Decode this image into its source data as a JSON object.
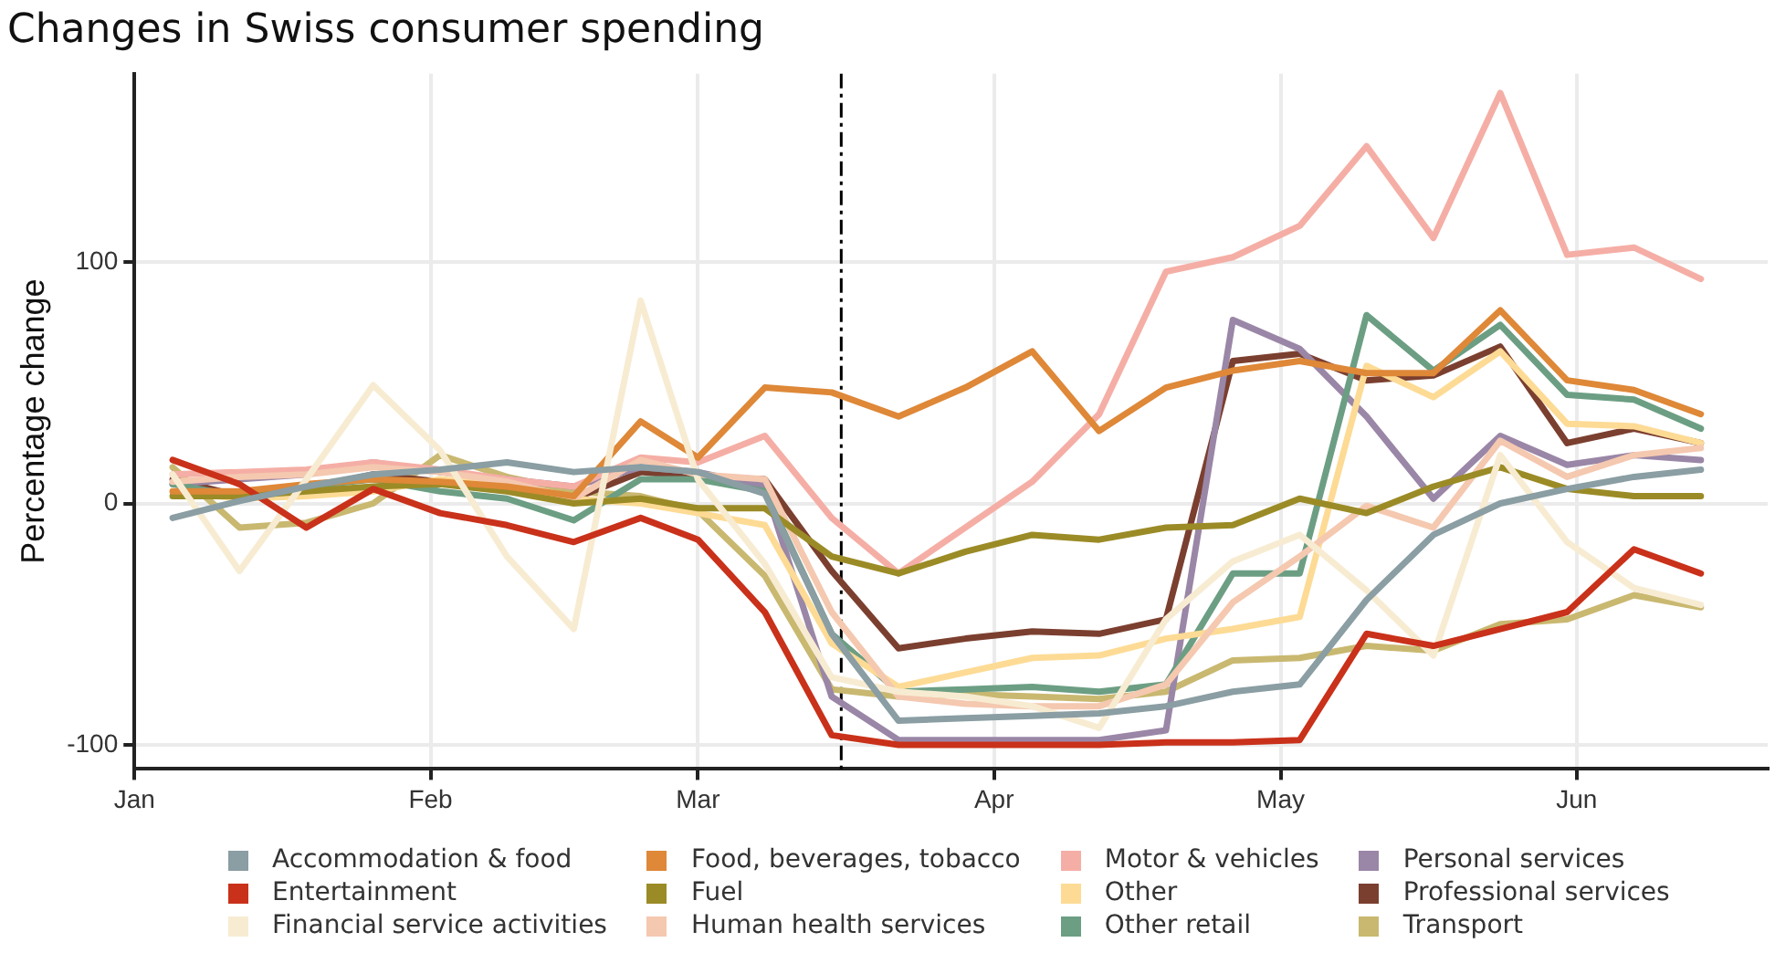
{
  "chart_data": {
    "type": "line",
    "title": "Changes in Swiss consumer spending",
    "ylabel": "Percentage change",
    "x": [
      "--01-05",
      "--01-12",
      "--01-19",
      "--01-26",
      "--02-02",
      "--02-09",
      "--02-16",
      "--02-23",
      "--03-01",
      "--03-08",
      "--03-15",
      "--03-22",
      "--03-29",
      "--04-05",
      "--04-12",
      "--04-19",
      "--04-26",
      "--05-03",
      "--05-10",
      "--05-17",
      "--05-24",
      "--05-31",
      "--06-07",
      "--06-14"
    ],
    "xlim": [
      "--01-01",
      "--06-21"
    ],
    "xticks": [
      {
        "value": "--01-01",
        "label": "Jan"
      },
      {
        "value": "--02-01",
        "label": "Feb"
      },
      {
        "value": "--03-01",
        "label": "Mar"
      },
      {
        "value": "--04-01",
        "label": "Apr"
      },
      {
        "value": "--05-01",
        "label": "May"
      },
      {
        "value": "--06-01",
        "label": "Jun"
      }
    ],
    "ylim": [
      -110,
      178
    ],
    "yticks": [
      -100,
      0,
      100
    ],
    "grid": true,
    "legend": "bottom",
    "marker": "none",
    "line_style": "solid",
    "ref_lines": [
      {
        "axis": "x",
        "value": "--03-16",
        "color": "#000000",
        "line_style": "dashed"
      }
    ],
    "series": [
      {
        "name": "Accommodation & food",
        "color": "#8a9ea3",
        "values": [
          -6,
          1,
          7,
          12,
          14,
          17,
          13,
          15,
          13,
          4,
          -54,
          -90,
          -89,
          -88,
          -87,
          -84,
          -78,
          -75,
          -40,
          -13,
          0,
          6,
          11,
          14
        ]
      },
      {
        "name": "Entertainment",
        "color": "#c9311a",
        "values": [
          18,
          8,
          -10,
          6,
          -4,
          -9,
          -16,
          -6,
          -15,
          -45,
          -96,
          -100,
          -100,
          -100,
          -100,
          -99,
          -99,
          -98,
          -54,
          -59,
          -52,
          -45,
          -19,
          -29
        ]
      },
      {
        "name": "Financial service activities",
        "color": "#f7ecd2",
        "values": [
          12,
          -28,
          10,
          49,
          22,
          -22,
          -52,
          84,
          10,
          -25,
          -72,
          -78,
          -80,
          -84,
          -93,
          -48,
          -24,
          -13,
          -36,
          -63,
          20,
          -16,
          -35,
          -42
        ]
      },
      {
        "name": "Food, beverages, tobacco",
        "color": "#de8838",
        "values": [
          5,
          5,
          8,
          10,
          9,
          7,
          3,
          34,
          19,
          48,
          46,
          36,
          48,
          63,
          30,
          48,
          55,
          59,
          54,
          54,
          80,
          51,
          47,
          37
        ]
      },
      {
        "name": "Fuel",
        "color": "#9b8b26",
        "values": [
          3,
          3,
          5,
          7,
          8,
          5,
          0,
          2,
          -2,
          -2,
          -22,
          -29,
          -20,
          -13,
          -15,
          -10,
          -9,
          2,
          -4,
          7,
          15,
          6,
          3,
          3
        ]
      },
      {
        "name": "Human health services",
        "color": "#f5c8b0",
        "values": [
          9,
          11,
          12,
          15,
          13,
          9,
          2,
          18,
          12,
          10,
          -45,
          -80,
          -83,
          -84,
          -84,
          -75,
          -41,
          -22,
          -1,
          -10,
          26,
          11,
          20,
          23
        ]
      },
      {
        "name": "Motor & vehicles",
        "color": "#f5aea5",
        "values": [
          12,
          13,
          14,
          17,
          14,
          10,
          7,
          19,
          17,
          28,
          -6,
          -29,
          -10,
          9,
          37,
          96,
          102,
          115,
          148,
          110,
          170,
          103,
          106,
          93
        ]
      },
      {
        "name": "Other",
        "color": "#fddb95",
        "values": [
          5,
          2,
          3,
          5,
          10,
          7,
          2,
          0,
          -4,
          -9,
          -58,
          -76,
          -70,
          -64,
          -63,
          -56,
          -52,
          -47,
          57,
          44,
          63,
          33,
          32,
          25
        ]
      },
      {
        "name": "Other retail",
        "color": "#6c9e83",
        "values": [
          8,
          3,
          7,
          10,
          5,
          2,
          -7,
          10,
          10,
          5,
          -54,
          -78,
          -77,
          -76,
          -78,
          -75,
          -29,
          -29,
          78,
          55,
          74,
          45,
          43,
          31
        ]
      },
      {
        "name": "Personal services",
        "color": "#9a86a6",
        "values": [
          8,
          10,
          12,
          17,
          13,
          10,
          7,
          15,
          13,
          7,
          -80,
          -98,
          -98,
          -98,
          -98,
          -94,
          76,
          64,
          36,
          2,
          28,
          16,
          20,
          18
        ]
      },
      {
        "name": "Professional services",
        "color": "#7b3f2f",
        "values": [
          10,
          3,
          6,
          12,
          9,
          6,
          2,
          13,
          11,
          10,
          -28,
          -60,
          -56,
          -53,
          -54,
          -48,
          59,
          62,
          51,
          53,
          65,
          25,
          31,
          25
        ]
      },
      {
        "name": "Transport",
        "color": "#c9b870",
        "values": [
          15,
          -10,
          -8,
          0,
          20,
          11,
          5,
          3,
          -3,
          -30,
          -77,
          -80,
          -79,
          -80,
          -81,
          -78,
          -65,
          -64,
          -59,
          -61,
          -50,
          -48,
          -38,
          -43
        ]
      }
    ]
  }
}
